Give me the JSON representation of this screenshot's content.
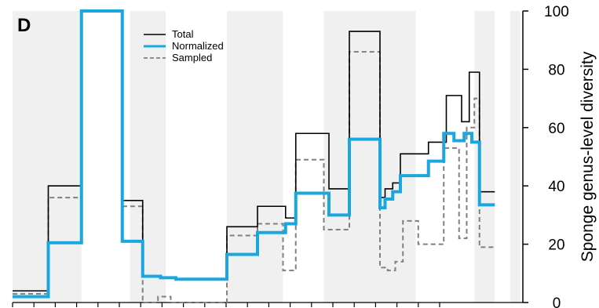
{
  "chart_data": {
    "type": "line",
    "panel_label": "D",
    "ylabel": "Sponge genus-level diversity",
    "ylim": [
      0,
      100
    ],
    "yticks": [
      0,
      20,
      40,
      60,
      80,
      100
    ],
    "grid": false,
    "legend_position": "top-left",
    "shaded_intervals": [
      [
        0,
        1.35
      ],
      [
        2.3,
        3.0
      ],
      [
        4.2,
        5.3
      ],
      [
        6.1,
        7.9
      ],
      [
        9.05,
        9.45
      ],
      [
        9.75,
        9.95
      ]
    ],
    "series": [
      {
        "name": "Total",
        "color": "#000000",
        "style": "solid",
        "steps": [
          {
            "x0": 0,
            "x1": 0.7,
            "y": 4
          },
          {
            "x0": 0.7,
            "x1": 1.35,
            "y": 40
          },
          {
            "x0": 1.35,
            "x1": 2.15,
            "y": 100
          },
          {
            "x0": 2.15,
            "x1": 2.55,
            "y": 35
          },
          {
            "x0": 2.55,
            "x1": 2.9,
            "y": 9
          },
          {
            "x0": 2.9,
            "x1": 3.2,
            "y": 8.5
          },
          {
            "x0": 3.2,
            "x1": 4.2,
            "y": 8
          },
          {
            "x0": 4.2,
            "x1": 4.8,
            "y": 26
          },
          {
            "x0": 4.8,
            "x1": 5.35,
            "y": 33
          },
          {
            "x0": 5.35,
            "x1": 5.55,
            "y": 29
          },
          {
            "x0": 5.55,
            "x1": 6.2,
            "y": 58
          },
          {
            "x0": 6.2,
            "x1": 6.6,
            "y": 39
          },
          {
            "x0": 6.6,
            "x1": 7.2,
            "y": 93
          },
          {
            "x0": 7.2,
            "x1": 7.3,
            "y": 36
          },
          {
            "x0": 7.3,
            "x1": 7.45,
            "y": 39
          },
          {
            "x0": 7.45,
            "x1": 7.6,
            "y": 41
          },
          {
            "x0": 7.6,
            "x1": 8.15,
            "y": 51
          },
          {
            "x0": 8.15,
            "x1": 8.5,
            "y": 55
          },
          {
            "x0": 8.5,
            "x1": 8.8,
            "y": 71
          },
          {
            "x0": 8.8,
            "x1": 8.95,
            "y": 62
          },
          {
            "x0": 8.95,
            "x1": 9.15,
            "y": 79
          },
          {
            "x0": 9.15,
            "x1": 9.45,
            "y": 38
          }
        ]
      },
      {
        "name": "Normalized",
        "color": "#1aa7e0",
        "style": "solid",
        "steps": [
          {
            "x0": 0,
            "x1": 0.7,
            "y": 2
          },
          {
            "x0": 0.7,
            "x1": 1.35,
            "y": 20.5
          },
          {
            "x0": 1.35,
            "x1": 2.15,
            "y": 100
          },
          {
            "x0": 2.15,
            "x1": 2.55,
            "y": 21
          },
          {
            "x0": 2.55,
            "x1": 2.9,
            "y": 9
          },
          {
            "x0": 2.9,
            "x1": 3.2,
            "y": 8.5
          },
          {
            "x0": 3.2,
            "x1": 4.2,
            "y": 8
          },
          {
            "x0": 4.2,
            "x1": 4.8,
            "y": 16.5
          },
          {
            "x0": 4.8,
            "x1": 5.35,
            "y": 24
          },
          {
            "x0": 5.35,
            "x1": 5.55,
            "y": 27
          },
          {
            "x0": 5.55,
            "x1": 6.2,
            "y": 37.5
          },
          {
            "x0": 6.2,
            "x1": 6.6,
            "y": 30
          },
          {
            "x0": 6.6,
            "x1": 7.2,
            "y": 56
          },
          {
            "x0": 7.2,
            "x1": 7.3,
            "y": 32.5
          },
          {
            "x0": 7.3,
            "x1": 7.45,
            "y": 35.5
          },
          {
            "x0": 7.45,
            "x1": 7.6,
            "y": 38
          },
          {
            "x0": 7.6,
            "x1": 8.0,
            "y": 43.5
          },
          {
            "x0": 8.0,
            "x1": 8.15,
            "y": 43.5
          },
          {
            "x0": 8.15,
            "x1": 8.45,
            "y": 48.5
          },
          {
            "x0": 8.45,
            "x1": 8.65,
            "y": 58
          },
          {
            "x0": 8.65,
            "x1": 8.85,
            "y": 55.5
          },
          {
            "x0": 8.85,
            "x1": 9.0,
            "y": 58
          },
          {
            "x0": 9.0,
            "x1": 9.15,
            "y": 55
          },
          {
            "x0": 9.15,
            "x1": 9.45,
            "y": 33.5
          }
        ]
      },
      {
        "name": "Sampled",
        "color": "#808080",
        "style": "dashed",
        "steps": [
          {
            "x0": 0,
            "x1": 0.7,
            "y": 3
          },
          {
            "x0": 0.7,
            "x1": 1.35,
            "y": 36
          },
          {
            "x0": 1.35,
            "x1": 2.15,
            "y": 100
          },
          {
            "x0": 2.15,
            "x1": 2.55,
            "y": 33
          },
          {
            "x0": 2.55,
            "x1": 2.85,
            "y": 0
          },
          {
            "x0": 2.85,
            "x1": 3.1,
            "y": 2
          },
          {
            "x0": 3.1,
            "x1": 4.2,
            "y": 0
          },
          {
            "x0": 4.2,
            "x1": 4.8,
            "y": 23
          },
          {
            "x0": 4.8,
            "x1": 5.3,
            "y": 27
          },
          {
            "x0": 5.3,
            "x1": 5.55,
            "y": 11
          },
          {
            "x0": 5.55,
            "x1": 6.1,
            "y": 49
          },
          {
            "x0": 6.1,
            "x1": 6.6,
            "y": 25
          },
          {
            "x0": 6.6,
            "x1": 7.2,
            "y": 86
          },
          {
            "x0": 7.2,
            "x1": 7.35,
            "y": 12
          },
          {
            "x0": 7.35,
            "x1": 7.5,
            "y": 11
          },
          {
            "x0": 7.5,
            "x1": 7.65,
            "y": 14
          },
          {
            "x0": 7.65,
            "x1": 7.95,
            "y": 28
          },
          {
            "x0": 7.95,
            "x1": 8.15,
            "y": 20
          },
          {
            "x0": 8.15,
            "x1": 8.45,
            "y": 20
          },
          {
            "x0": 8.45,
            "x1": 8.75,
            "y": 53
          },
          {
            "x0": 8.75,
            "x1": 8.9,
            "y": 22
          },
          {
            "x0": 8.9,
            "x1": 9.05,
            "y": 60
          },
          {
            "x0": 9.05,
            "x1": 9.15,
            "y": 70
          },
          {
            "x0": 9.15,
            "x1": 9.45,
            "y": 19
          }
        ]
      }
    ]
  }
}
